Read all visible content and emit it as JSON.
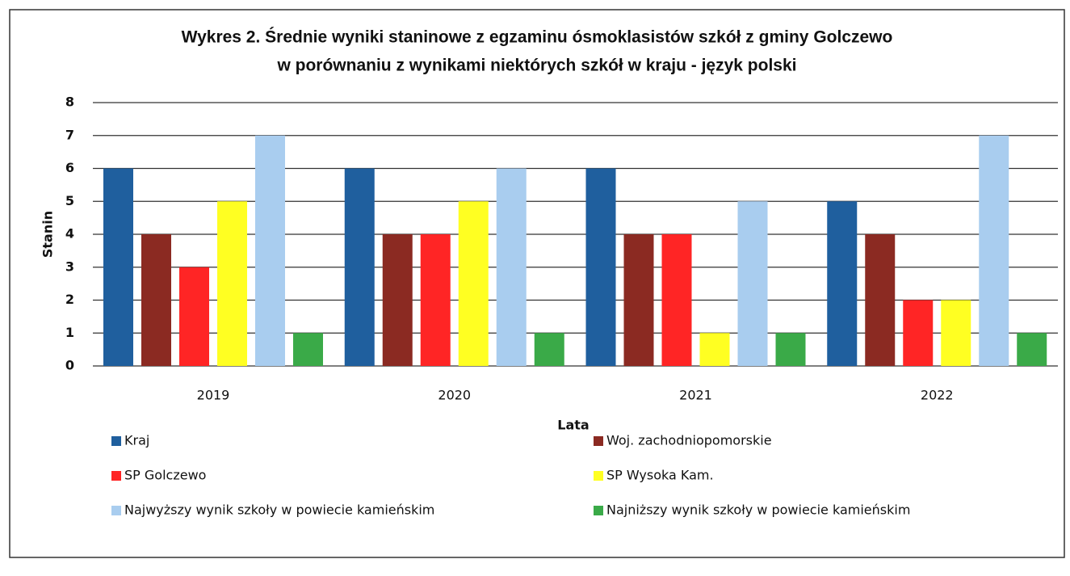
{
  "chart_data": {
    "type": "bar",
    "title": [
      "Wykres 2. Średnie wyniki staninowe z egzaminu ósmoklasistów szkół z gminy Golczewo",
      "w porównaniu z wynikami niektórych szkół w kraju - język polski"
    ],
    "x_label": "Lata",
    "y_label": "Stanin",
    "categories": [
      "2019",
      "2020",
      "2021",
      "2022"
    ],
    "series": [
      {
        "name": "Kraj",
        "color": "#1f5f9e",
        "values": [
          6,
          6,
          6,
          5
        ]
      },
      {
        "name": "Woj. zachodniopomorskie",
        "color": "#8b2a22",
        "values": [
          4,
          4,
          4,
          4
        ]
      },
      {
        "name": "SP Golczewo",
        "color": "#ff2525",
        "values": [
          3,
          4,
          4,
          2
        ]
      },
      {
        "name": "SP Wysoka Kam.",
        "color": "#ffff22",
        "values": [
          5,
          5,
          1,
          2
        ]
      },
      {
        "name": "Najwyższy wynik szkoły w powiecie kamieńskim",
        "color": "#a9cdef",
        "values": [
          7,
          6,
          5,
          7
        ]
      },
      {
        "name": "Najniższy wynik szkoły w powiecie kamieńskim",
        "color": "#3aaa48",
        "values": [
          1,
          1,
          1,
          1
        ]
      }
    ],
    "ylim": [
      0,
      8
    ],
    "yticks": [
      0,
      1,
      2,
      3,
      4,
      5,
      6,
      7,
      8
    ],
    "grid": true,
    "legend": "bottom"
  }
}
